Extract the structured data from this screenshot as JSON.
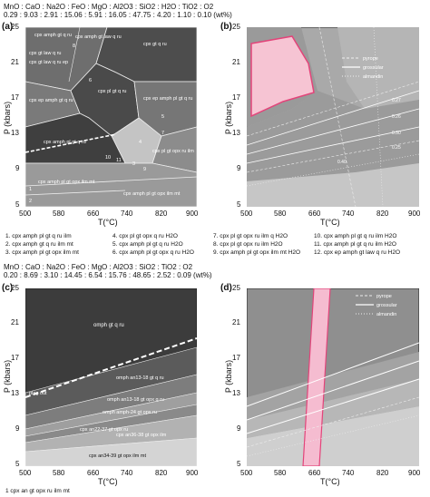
{
  "top": {
    "composition_header": "MnO : CaO : Na2O : FeO : MgO : Al2O3 : SiO2 : H2O : TiO2 : O2",
    "composition_values": "0.29 : 9.03 : 2.91 : 15.06 : 5.91 : 16.05 : 47.75 : 4.20 : 1.10 : 0.10 (wt%)",
    "panel_a_label": "(a)",
    "panel_b_label": "(b)",
    "panel_a_fields": [
      "cpx amph gt q ru",
      "cpx amph gt law q ru",
      "cpx gt law q ru",
      "cpx gt q ru",
      "cpx gt law q ru ep",
      "cpx ep amph gt q ru",
      "cpx pl gt q ru",
      "cpx ep amph pl gt q ru",
      "cpx amph pl gt q ru",
      "cpx pl gt opx ru ilm",
      "cpx amph pl gt opx ilm mt",
      "cpx amph pl gt opx ilm mt"
    ],
    "panel_a_numbers": [
      "1",
      "2",
      "3",
      "4",
      "5",
      "6",
      "7",
      "8",
      "9",
      "10",
      "11"
    ],
    "legend_b": [
      "pyrope",
      "grossular",
      "almandin"
    ],
    "contour_labels_b": [
      "0.27",
      "0.26",
      "0.30",
      "0.25",
      "0.40"
    ],
    "footnotes": [
      "1. cpx amph pl gt q ru ilm",
      "2. cpx amph gt q ru ilm mt",
      "3. cpx amph pl gt opx ilm mt",
      "4. cpx pl gt opx q ru H2O",
      "5. cpx amph pl gt q ru H2O",
      "6. cpx amph pl gt opx q ru H2O",
      "7. cpx pl gt opx ru ilm q H2O",
      "8. cpx pl gt opx ru ilm H2O",
      "9. cpx amph pl gt opx ilm mt H2O",
      "10. cpx amph pl gt q ru ilm H2O",
      "11. cpx amph pl gt q ru ilm H2O",
      "12. cpx ep amph gt law q ru H2O"
    ]
  },
  "bottom": {
    "composition_header": "MnO : CaO : Na2O : FeO : MgO : Al2O3 : SiO2 : TiO2 : O2",
    "composition_values": "0.20 : 8.69 : 3.10 : 14.45 : 6.54 : 15.76 : 48.65 : 2.52 : 0.09 (wt%)",
    "panel_c_label": "(c)",
    "panel_d_label": "(d)",
    "panel_c_fields": [
      "omph gt q ru",
      "omph an13-18 gt q ru",
      "omph an13-18 gt opx q ru",
      "omph amph-24 gt opx ru",
      "cpx an22-37 gt opx ru",
      "cpx an36-38 gt opx ilm",
      "cpx an34-39 gt opx ilm mt"
    ],
    "plag_out_label": "plag out",
    "legend_d": [
      "pyrope",
      "grossular",
      "almandin"
    ],
    "footnote": "1 cpx an gt opx ru ilm mt"
  },
  "axes": {
    "y_title": "P (kbars)",
    "x_title": "T(°C)",
    "y_ticks": [
      "25",
      "21",
      "17",
      "13",
      "9",
      "5"
    ],
    "x_ticks": [
      "500",
      "580",
      "660",
      "740",
      "820",
      "900"
    ]
  }
}
